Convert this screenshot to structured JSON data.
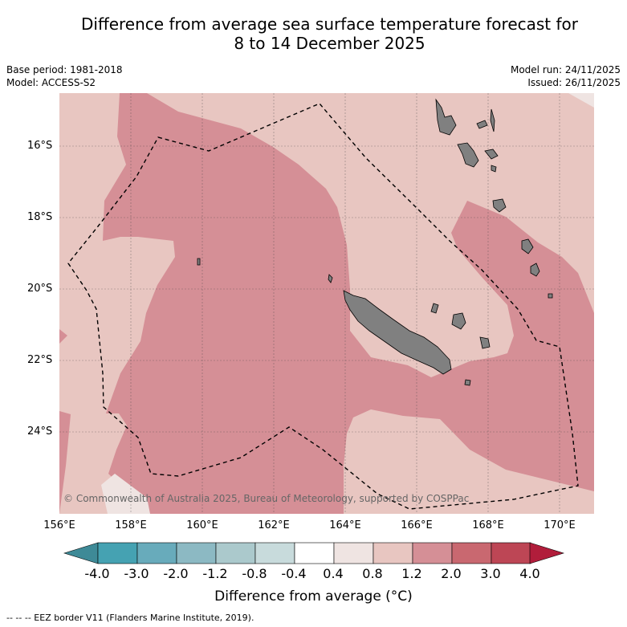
{
  "title": {
    "line1": "Difference from average sea surface temperature forecast for",
    "line2": "8 to 14 December 2025"
  },
  "meta": {
    "base_period": "Base period: 1981-2018",
    "model": "Model: ACCESS-S2",
    "model_run": "Model run: 24/11/2025",
    "issued": "Issued: 26/11/2025"
  },
  "axes": {
    "lat_labels": [
      "16°S",
      "18°S",
      "20°S",
      "22°S",
      "24°S"
    ],
    "lon_labels": [
      "156°E",
      "158°E",
      "160°E",
      "162°E",
      "164°E",
      "166°E",
      "168°E",
      "170°E"
    ]
  },
  "colors": {
    "anom_0_4_to_0_8": "#efe4e2",
    "anom_0_8_to_1_2": "#e8c6c1",
    "anom_1_2_to_2_0": "#d58f96",
    "land": "#808080",
    "eez": "#000000"
  },
  "copyright": "© Commonwealth of Australia 2025, Bureau of Meteorology, supported by COSPPac",
  "colorbar": {
    "labels": [
      "-4.0",
      "-3.0",
      "-2.0",
      "-1.2",
      "-0.8",
      "-0.4",
      "0.4",
      "0.8",
      "1.2",
      "2.0",
      "3.0",
      "4.0"
    ],
    "colors": [
      "#45a2b2",
      "#68abbb",
      "#8cb9c3",
      "#abc9cc",
      "#c8dbdc",
      "#ffffff",
      "#efe4e2",
      "#e8c6c1",
      "#d58f96",
      "#c96870",
      "#bd4655"
    ],
    "low_extend_color": "#3e8a97",
    "high_extend_color": "#b11d3b",
    "title": "Difference from average (°C)"
  },
  "footer": "--  --  -- EEZ border V11 (Flanders Marine Institute, 2019)."
}
